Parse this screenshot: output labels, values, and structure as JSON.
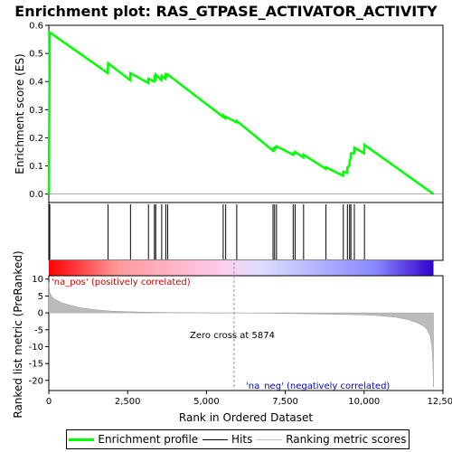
{
  "chart_data": {
    "type": "line",
    "title": "Enrichment plot: RAS_GTPASE_ACTIVATOR_ACTIVITY",
    "top_panel": {
      "ylabel": "Enrichment score (ES)",
      "ylim": [
        -0.03,
        0.6
      ],
      "yticks": [
        0.0,
        0.1,
        0.2,
        0.3,
        0.4,
        0.5,
        0.6
      ],
      "ytick_labels": [
        "0.0",
        "0.1",
        "0.2",
        "0.3",
        "0.4",
        "0.5",
        "0.6"
      ],
      "series": [
        {
          "name": "Enrichment profile",
          "color": "#00ff00",
          "x": [
            0,
            30,
            1870,
            1880,
            2580,
            2590,
            3150,
            3160,
            3340,
            3350,
            3380,
            3390,
            3570,
            3580,
            3700,
            3710,
            3760,
            3770,
            5520,
            5530,
            5600,
            5610,
            5950,
            5960,
            7100,
            7110,
            7150,
            7160,
            7210,
            7220,
            7740,
            7750,
            7800,
            7810,
            8070,
            8080,
            8780,
            8790,
            9330,
            9340,
            9460,
            9470,
            9530,
            9540,
            9570,
            9580,
            9680,
            9690,
            10000,
            10010,
            12200
          ],
          "y": [
            0.0,
            0.575,
            0.43,
            0.465,
            0.405,
            0.43,
            0.395,
            0.41,
            0.4,
            0.415,
            0.41,
            0.425,
            0.405,
            0.42,
            0.41,
            0.425,
            0.42,
            0.425,
            0.275,
            0.28,
            0.27,
            0.275,
            0.255,
            0.26,
            0.155,
            0.16,
            0.155,
            0.165,
            0.165,
            0.17,
            0.14,
            0.145,
            0.145,
            0.15,
            0.13,
            0.14,
            0.09,
            0.095,
            0.065,
            0.08,
            0.075,
            0.095,
            0.1,
            0.12,
            0.125,
            0.145,
            0.145,
            0.165,
            0.145,
            0.175,
            0.0
          ]
        }
      ]
    },
    "hits": {
      "name": "Hits",
      "color": "#000000",
      "positions": [
        30,
        1880,
        2590,
        3160,
        3350,
        3390,
        3580,
        3710,
        3770,
        5530,
        5610,
        5960,
        7110,
        7160,
        7220,
        7750,
        7810,
        8080,
        8790,
        9340,
        9470,
        9540,
        9580,
        9690,
        10010
      ]
    },
    "heatmap": {
      "color_stops": [
        "#ff0000",
        "#ff9999",
        "#ffccee",
        "#ddddff",
        "#8888ff",
        "#3300cc"
      ],
      "label_pos": "'na_pos' (positively correlated)",
      "label_neg": "'na_neg' (negatively correlated)",
      "label_pos_color": "#cc0000",
      "label_neg_color": "#0000cc"
    },
    "bottom_panel": {
      "ylabel": "Ranked list metric (PreRanked)",
      "xlabel": "Rank in Ordered Dataset",
      "ylim": [
        -23,
        11
      ],
      "yticks": [
        10,
        5,
        0,
        -5,
        -10,
        -15,
        -20
      ],
      "ytick_labels": [
        "10",
        "5",
        "0",
        "-5",
        "-10",
        "-15",
        "-20"
      ],
      "series": [
        {
          "name": "Ranking metric scores",
          "color": "#bbbbbb",
          "x": [
            0,
            30,
            100,
            200,
            400,
            700,
            1000,
            1500,
            2000,
            3000,
            4000,
            5000,
            5874,
            7000,
            8000,
            9000,
            10000,
            10500,
            11000,
            11400,
            11700,
            11900,
            12000,
            12100,
            12150,
            12180,
            12200
          ],
          "y": [
            9.0,
            6.0,
            4.8,
            4.0,
            3.0,
            2.2,
            1.5,
            0.9,
            0.5,
            0.2,
            0.08,
            0.02,
            0.0,
            -0.1,
            -0.25,
            -0.4,
            -0.6,
            -0.85,
            -1.3,
            -2.0,
            -3.0,
            -4.0,
            -5.0,
            -7.0,
            -10.0,
            -15.0,
            -22.0
          ]
        }
      ],
      "zero_cross_label": "Zero cross at 5874",
      "zero_cross": 5874
    },
    "x_axis": {
      "xlim": [
        0,
        12500
      ],
      "xticks": [
        0,
        2500,
        5000,
        7500,
        10000,
        12500
      ],
      "xtick_labels": [
        "0",
        "2,500",
        "5,000",
        "7,500",
        "10,000",
        "12,500"
      ]
    },
    "legend": {
      "placement": "bottom",
      "entries": [
        {
          "label": "Enrichment profile",
          "color": "#00ff00"
        },
        {
          "label": "Hits",
          "color": "#000000"
        },
        {
          "label": "Ranking metric scores",
          "color": "#bbbbbb"
        }
      ]
    }
  }
}
